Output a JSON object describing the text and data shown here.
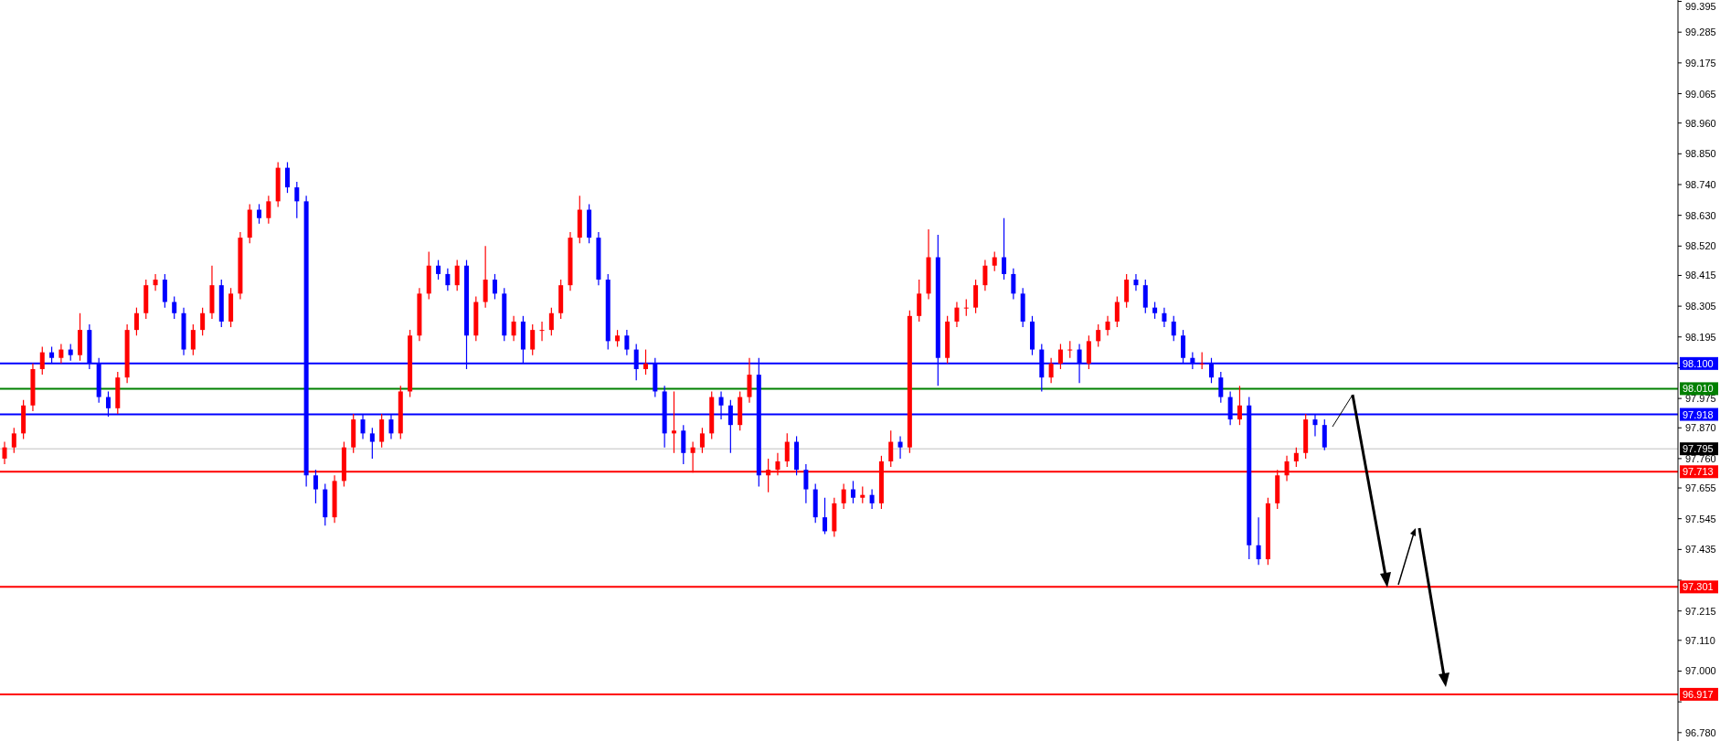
{
  "chart_data": {
    "type": "candlestick",
    "categories": [
      null,
      null,
      null,
      null,
      null,
      null,
      null,
      null,
      null,
      null,
      null,
      null,
      null,
      null,
      null,
      null,
      null,
      null,
      null,
      null,
      null,
      null,
      null,
      null,
      null,
      null,
      null,
      null,
      null,
      null,
      null,
      null,
      null,
      null,
      null,
      null,
      null,
      null,
      null,
      null,
      null,
      null,
      null,
      null,
      null,
      null,
      null,
      null,
      null,
      null,
      null,
      null,
      null,
      null,
      null,
      null,
      null,
      null,
      null,
      null,
      null,
      null,
      null,
      null,
      null,
      null,
      null,
      null,
      null,
      null,
      null,
      null,
      null,
      null,
      null,
      null,
      null,
      null,
      null,
      null,
      null,
      null,
      null,
      null,
      null,
      null,
      null,
      null,
      null,
      null,
      null,
      null,
      null,
      null,
      null,
      null,
      null,
      null,
      null,
      null,
      null,
      null,
      null,
      null,
      null,
      null,
      null,
      null,
      null,
      null,
      null,
      null,
      null,
      null,
      null,
      null,
      null,
      null,
      null,
      null,
      null,
      null,
      null,
      null,
      null,
      null,
      null,
      null,
      null,
      null,
      null,
      null,
      null,
      null,
      null,
      null,
      null,
      null,
      null,
      null,
      null,
      null,
      null,
      null,
      null,
      null,
      null,
      null,
      null,
      null,
      null,
      null,
      null,
      null,
      null,
      null,
      null,
      null,
      null,
      null,
      null,
      null,
      null,
      null,
      null,
      null,
      null,
      null,
      null,
      null,
      null,
      null,
      null,
      null,
      null,
      null,
      null,
      null
    ],
    "colors": [
      "#ff0000",
      "#ff0000",
      "#ff0000",
      "#ff0000",
      "#ff0000",
      "#0000ff",
      "#ff0000",
      "#0000ff",
      "#ff0000",
      "#0000ff",
      "#0000ff",
      "#0000ff",
      "#ff0000",
      "#ff0000",
      "#ff0000",
      "#ff0000",
      "#ff0000",
      "#0000ff",
      "#0000ff",
      "#0000ff",
      "#ff0000",
      "#ff0000",
      "#ff0000",
      "#0000ff",
      "#ff0000",
      "#ff0000",
      "#ff0000",
      "#0000ff",
      "#ff0000",
      "#ff0000",
      "#0000ff",
      "#0000ff",
      "#0000ff",
      "#0000ff",
      "#0000ff",
      "#ff0000",
      "#ff0000",
      "#ff0000",
      "#0000ff",
      "#0000ff",
      "#ff0000",
      "#0000ff",
      "#ff0000",
      "#ff0000",
      "#ff0000",
      "#ff0000",
      "#0000ff",
      "#0000ff",
      "#ff0000",
      "#0000ff",
      "#ff0000",
      "#ff0000",
      "#0000ff",
      "#0000ff",
      "#ff0000",
      "#0000ff",
      "#ff0000",
      "#ff0000",
      "#ff0000",
      "#ff0000",
      "#ff0000",
      "#ff0000",
      "#0000ff",
      "#0000ff",
      "#0000ff",
      "#ff0000",
      "#0000ff",
      "#0000ff",
      "#ff0000",
      "#0000ff",
      "#0000ff",
      "#ff0000",
      "#0000ff",
      "#ff0000",
      "#ff0000",
      "#ff0000",
      "#0000ff",
      "#0000ff",
      "#ff0000",
      "#ff0000",
      "#0000ff",
      "#ff0000",
      "#ff0000",
      "#ff0000",
      "#0000ff",
      "#0000ff",
      "#0000ff",
      "#0000ff",
      "#ff0000",
      "#ff0000",
      "#0000ff",
      "#ff0000",
      "#0000ff",
      "#ff0000",
      "#ff0000",
      "#0000ff",
      "#ff0000",
      "#ff0000",
      "#ff0000",
      "#0000ff",
      "#ff0000",
      "#ff0000",
      "#ff0000",
      "#ff0000",
      "#ff0000",
      "#ff0000",
      "#0000ff",
      "#0000ff",
      "#0000ff",
      "#0000ff",
      "#0000ff",
      "#ff0000",
      "#ff0000",
      "#ff0000",
      "#0000ff",
      "#ff0000",
      "#ff0000",
      "#ff0000",
      "#ff0000",
      "#ff0000",
      "#0000ff",
      "#0000ff",
      "#0000ff",
      "#0000ff",
      "#0000ff",
      "#0000ff",
      "#0000ff",
      "#ff0000",
      "#0000ff",
      "#0000ff",
      "#0000ff",
      "#ff0000",
      "#0000ff",
      "#0000ff",
      "#ff0000",
      "#ff0000",
      "#ff0000",
      "#ff0000",
      "#ff0000",
      "#0000ff",
      "#0000ff",
      null,
      null,
      null,
      null,
      null,
      null,
      null,
      null,
      null,
      null,
      null,
      null,
      null,
      null,
      null,
      null,
      null,
      null,
      null,
      null,
      null,
      null,
      null,
      null,
      null,
      null,
      null,
      null,
      null,
      null,
      null,
      null,
      null,
      null,
      null,
      null,
      null
    ],
    "ohlc": [
      [
        97.76,
        97.82,
        97.74,
        97.8
      ],
      [
        97.8,
        97.87,
        97.78,
        97.85
      ],
      [
        97.85,
        97.97,
        97.83,
        97.95
      ],
      [
        97.95,
        98.1,
        97.93,
        98.08
      ],
      [
        98.08,
        98.16,
        98.06,
        98.14
      ],
      [
        98.14,
        98.16,
        98.1,
        98.12
      ],
      [
        98.12,
        98.17,
        98.1,
        98.15
      ],
      [
        98.15,
        98.17,
        98.11,
        98.13
      ],
      [
        98.13,
        98.28,
        98.11,
        98.22
      ],
      [
        98.22,
        98.24,
        98.08,
        98.1
      ],
      [
        98.1,
        98.12,
        97.96,
        97.98
      ],
      [
        97.98,
        98.0,
        97.91,
        97.94
      ],
      [
        97.94,
        98.07,
        97.92,
        98.05
      ],
      [
        98.05,
        98.24,
        98.03,
        98.22
      ],
      [
        98.22,
        98.3,
        98.2,
        98.28
      ],
      [
        98.28,
        98.4,
        98.26,
        98.38
      ],
      [
        98.38,
        98.42,
        98.36,
        98.4
      ],
      [
        98.4,
        98.42,
        98.3,
        98.32
      ],
      [
        98.32,
        98.34,
        98.26,
        98.28
      ],
      [
        98.28,
        98.3,
        98.13,
        98.15
      ],
      [
        98.15,
        98.24,
        98.13,
        98.22
      ],
      [
        98.22,
        98.3,
        98.2,
        98.28
      ],
      [
        98.28,
        98.45,
        98.26,
        98.38
      ],
      [
        98.38,
        98.4,
        98.23,
        98.25
      ],
      [
        98.25,
        98.37,
        98.23,
        98.35
      ],
      [
        98.35,
        98.57,
        98.33,
        98.55
      ],
      [
        98.55,
        98.67,
        98.53,
        98.65
      ],
      [
        98.65,
        98.67,
        98.6,
        98.62
      ],
      [
        98.62,
        98.7,
        98.6,
        98.68
      ],
      [
        98.68,
        98.82,
        98.66,
        98.8
      ],
      [
        98.8,
        98.82,
        98.71,
        98.73
      ],
      [
        98.73,
        98.75,
        98.62,
        98.68
      ],
      [
        98.68,
        98.7,
        97.66,
        97.7
      ],
      [
        97.7,
        97.72,
        97.6,
        97.65
      ],
      [
        97.65,
        97.67,
        97.52,
        97.55
      ],
      [
        97.55,
        97.7,
        97.53,
        97.68
      ],
      [
        97.68,
        97.82,
        97.66,
        97.8
      ],
      [
        97.8,
        97.92,
        97.78,
        97.9
      ],
      [
        97.9,
        97.92,
        97.83,
        97.85
      ],
      [
        97.85,
        97.87,
        97.76,
        97.82
      ],
      [
        97.82,
        97.92,
        97.8,
        97.9
      ],
      [
        97.9,
        97.92,
        97.83,
        97.85
      ],
      [
        97.85,
        98.02,
        97.83,
        98.0
      ],
      [
        98.0,
        98.22,
        97.98,
        98.2
      ],
      [
        98.2,
        98.37,
        98.18,
        98.35
      ],
      [
        98.35,
        98.5,
        98.33,
        98.45
      ],
      [
        98.45,
        98.47,
        98.4,
        98.42
      ],
      [
        98.42,
        98.44,
        98.36,
        98.38
      ],
      [
        98.38,
        98.47,
        98.36,
        98.45
      ],
      [
        98.45,
        98.47,
        98.08,
        98.2
      ],
      [
        98.2,
        98.34,
        98.18,
        98.32
      ],
      [
        98.32,
        98.52,
        98.3,
        98.4
      ],
      [
        98.4,
        98.42,
        98.33,
        98.35
      ],
      [
        98.35,
        98.37,
        98.18,
        98.2
      ],
      [
        98.2,
        98.27,
        98.18,
        98.25
      ],
      [
        98.25,
        98.27,
        98.1,
        98.15
      ],
      [
        98.15,
        98.24,
        98.13,
        98.22
      ],
      [
        98.22,
        98.25,
        98.18,
        98.22
      ],
      [
        98.22,
        98.3,
        98.2,
        98.28
      ],
      [
        98.28,
        98.4,
        98.26,
        98.38
      ],
      [
        98.38,
        98.57,
        98.36,
        98.55
      ],
      [
        98.55,
        98.7,
        98.53,
        98.65
      ],
      [
        98.65,
        98.67,
        98.53,
        98.55
      ],
      [
        98.55,
        98.57,
        98.38,
        98.4
      ],
      [
        98.4,
        98.42,
        98.15,
        98.18
      ],
      [
        98.18,
        98.22,
        98.16,
        98.2
      ],
      [
        98.2,
        98.22,
        98.13,
        98.15
      ],
      [
        98.15,
        98.17,
        98.04,
        98.08
      ],
      [
        98.08,
        98.15,
        98.06,
        98.1
      ],
      [
        98.1,
        98.12,
        97.98,
        98.0
      ],
      [
        98.0,
        98.02,
        97.8,
        97.85
      ],
      [
        97.85,
        98.0,
        97.78,
        97.86
      ],
      [
        97.86,
        97.88,
        97.74,
        97.78
      ],
      [
        97.78,
        97.82,
        97.71,
        97.8
      ],
      [
        97.8,
        97.87,
        97.78,
        97.85
      ],
      [
        97.85,
        98.0,
        97.83,
        97.98
      ],
      [
        97.98,
        98.0,
        97.9,
        97.95
      ],
      [
        97.95,
        97.97,
        97.78,
        97.88
      ],
      [
        97.88,
        98.0,
        97.86,
        97.98
      ],
      [
        97.98,
        98.12,
        97.96,
        98.06
      ],
      [
        98.06,
        98.12,
        97.66,
        97.7
      ],
      [
        97.7,
        97.76,
        97.64,
        97.72
      ],
      [
        97.72,
        97.78,
        97.7,
        97.75
      ],
      [
        97.75,
        97.85,
        97.73,
        97.82
      ],
      [
        97.82,
        97.84,
        97.7,
        97.72
      ],
      [
        97.72,
        97.74,
        97.6,
        97.65
      ],
      [
        97.65,
        97.67,
        97.53,
        97.55
      ],
      [
        97.55,
        97.62,
        97.49,
        97.5
      ],
      [
        97.5,
        97.62,
        97.48,
        97.6
      ],
      [
        97.6,
        97.67,
        97.58,
        97.65
      ],
      [
        97.65,
        97.68,
        97.6,
        97.62
      ],
      [
        97.62,
        97.66,
        97.6,
        97.63
      ],
      [
        97.63,
        97.65,
        97.58,
        97.6
      ],
      [
        97.6,
        97.77,
        97.58,
        97.75
      ],
      [
        97.75,
        97.86,
        97.73,
        97.82
      ],
      [
        97.82,
        97.84,
        97.76,
        97.8
      ],
      [
        97.8,
        98.29,
        97.78,
        98.27
      ],
      [
        98.27,
        98.4,
        98.25,
        98.35
      ],
      [
        98.35,
        98.58,
        98.33,
        98.48
      ],
      [
        98.48,
        98.56,
        98.02,
        98.12
      ],
      [
        98.12,
        98.27,
        98.1,
        98.25
      ],
      [
        98.25,
        98.32,
        98.23,
        98.3
      ],
      [
        98.3,
        98.33,
        98.27,
        98.3
      ],
      [
        98.3,
        98.4,
        98.28,
        98.38
      ],
      [
        98.38,
        98.47,
        98.36,
        98.45
      ],
      [
        98.45,
        98.5,
        98.43,
        98.48
      ],
      [
        98.48,
        98.62,
        98.4,
        98.42
      ],
      [
        98.42,
        98.44,
        98.33,
        98.35
      ],
      [
        98.35,
        98.37,
        98.23,
        98.25
      ],
      [
        98.25,
        98.27,
        98.13,
        98.15
      ],
      [
        98.15,
        98.17,
        98.0,
        98.05
      ],
      [
        98.05,
        98.12,
        98.03,
        98.1
      ],
      [
        98.1,
        98.17,
        98.08,
        98.15
      ],
      [
        98.15,
        98.18,
        98.12,
        98.15
      ],
      [
        98.15,
        98.17,
        98.03,
        98.1
      ],
      [
        98.1,
        98.2,
        98.08,
        98.18
      ],
      [
        98.18,
        98.24,
        98.16,
        98.22
      ],
      [
        98.22,
        98.27,
        98.2,
        98.25
      ],
      [
        98.25,
        98.34,
        98.23,
        98.32
      ],
      [
        98.32,
        98.42,
        98.3,
        98.4
      ],
      [
        98.4,
        98.42,
        98.36,
        98.38
      ],
      [
        98.38,
        98.4,
        98.28,
        98.3
      ],
      [
        98.3,
        98.32,
        98.26,
        98.28
      ],
      [
        98.28,
        98.3,
        98.23,
        98.25
      ],
      [
        98.25,
        98.27,
        98.18,
        98.2
      ],
      [
        98.2,
        98.22,
        98.1,
        98.12
      ],
      [
        98.12,
        98.14,
        98.08,
        98.1
      ],
      [
        98.1,
        98.14,
        98.08,
        98.1
      ],
      [
        98.1,
        98.12,
        98.03,
        98.05
      ],
      [
        98.05,
        98.07,
        97.96,
        97.98
      ],
      [
        97.98,
        98.0,
        97.88,
        97.9
      ],
      [
        97.9,
        98.02,
        97.88,
        97.95
      ],
      [
        97.95,
        97.98,
        97.4,
        97.45
      ],
      [
        97.45,
        97.55,
        97.38,
        97.4
      ],
      [
        97.4,
        97.62,
        97.38,
        97.6
      ],
      [
        97.6,
        97.72,
        97.58,
        97.7
      ],
      [
        97.7,
        97.77,
        97.68,
        97.75
      ],
      [
        97.75,
        97.8,
        97.73,
        97.78
      ],
      [
        97.78,
        97.92,
        97.76,
        97.9
      ],
      [
        97.9,
        97.92,
        97.84,
        97.88
      ],
      [
        97.88,
        97.9,
        97.79,
        97.8
      ],
      null,
      null,
      null,
      null,
      null,
      null,
      null,
      null,
      null,
      null,
      null,
      null,
      null,
      null,
      null,
      null,
      null,
      null,
      null,
      null,
      null,
      null,
      null,
      null,
      null,
      null,
      null,
      null,
      null,
      null,
      null,
      null,
      null,
      null,
      null,
      null,
      null
    ],
    "ylim": [
      96.75,
      99.4
    ],
    "yticks": [
      99.395,
      99.285,
      99.175,
      99.065,
      {
        "value": 98.96,
        "label": "98.960"
      },
      {
        "value": 98.85,
        "label": "98.850"
      },
      {
        "value": 98.74,
        "label": "98.740"
      },
      {
        "value": 98.63,
        "label": "98.630"
      },
      {
        "value": 98.52,
        "label": "98.520"
      },
      98.415,
      98.305,
      98.195,
      {
        "value": 98.085,
        "label": null
      },
      97.975,
      {
        "value": 97.87,
        "label": "97.870"
      },
      {
        "value": 97.76,
        "label": "97.760"
      },
      97.655,
      97.545,
      97.435,
      {
        "value": 97.325,
        "label": null
      },
      97.215,
      {
        "value": 97.11,
        "label": "97.110"
      },
      {
        "value": 97.0,
        "label": "97.000"
      },
      {
        "value": 96.89,
        "label": null
      },
      {
        "value": 96.78,
        "label": "96.780"
      }
    ],
    "tick_labels": "y",
    "ref_lines": [
      {
        "axis": "y",
        "value": 98.1,
        "label": "98.100",
        "color": "#0000ff"
      },
      {
        "axis": "y",
        "value": 98.01,
        "label": "98.010",
        "color": "#008000"
      },
      {
        "axis": "y",
        "value": 97.918,
        "label": "97.918",
        "color": "#0000ff"
      },
      {
        "axis": "y",
        "value": 97.795,
        "label": "97.795",
        "color": "#c0c0c0"
      },
      {
        "axis": "y",
        "value": 97.713,
        "label": "97.713",
        "color": "#ff0000"
      },
      {
        "axis": "y",
        "value": 97.301,
        "label": "97.301",
        "color": "#ff0000"
      },
      {
        "axis": "y",
        "value": 96.917,
        "label": "96.917",
        "color": "#ff0000"
      }
    ]
  }
}
